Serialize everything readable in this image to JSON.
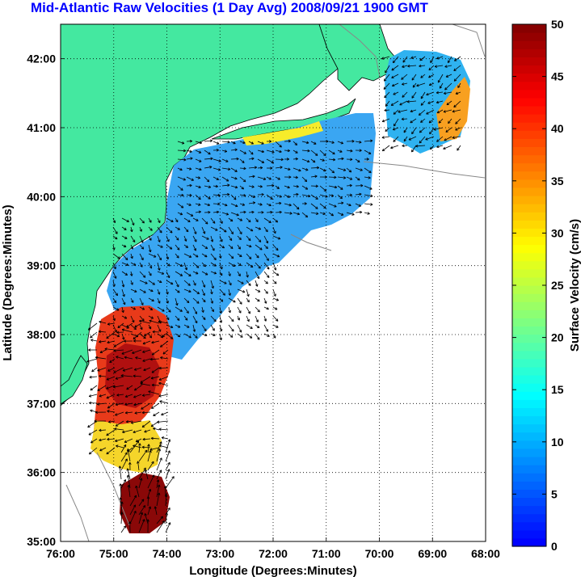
{
  "title": "Mid-Atlantic Raw Velocities (1 Day Avg) 2008/09/21 1900 GMT",
  "map": {
    "xlabel": "Longitude (Degrees:Minutes)",
    "ylabel": "Latitude (Degrees:Minutes)",
    "x_ticks": [
      "76:00",
      "75:00",
      "74:00",
      "73:00",
      "72:00",
      "71:00",
      "70:00",
      "69:00",
      "68:00"
    ],
    "y_ticks": [
      "42:00",
      "41:00",
      "40:00",
      "39:00",
      "38:00",
      "37:00",
      "36:00",
      "35:00"
    ],
    "x_range": [
      -76,
      -68
    ],
    "y_range": [
      35,
      42.5
    ],
    "land_color": "#44e8a0",
    "grid": "dotted"
  },
  "colorbar": {
    "label": "Surface Velocity (cm/s)",
    "ticks": [
      "0",
      "5",
      "10",
      "15",
      "20",
      "25",
      "30",
      "35",
      "40",
      "45",
      "50"
    ],
    "range": [
      0,
      50
    ],
    "colormap": "jet"
  },
  "chart_data": {
    "type": "heatmap",
    "title": "Mid-Atlantic Raw Velocities (1 Day Avg) 2008/09/21 1900 GMT",
    "xlabel": "Longitude (Degrees:Minutes)",
    "ylabel": "Latitude (Degrees:Minutes)",
    "colorbar_label": "Surface Velocity (cm/s)",
    "xlim": [
      -76,
      -68
    ],
    "ylim": [
      35,
      42.5
    ],
    "clim": [
      0,
      50
    ],
    "regions": [
      {
        "name": "",
        "lon": [
          -74.0,
          -70.2
        ],
        "lat": [
          39.6,
          40.9
        ],
        "speed_cm_s": 8
      },
      {
        "name": "",
        "lon": [
          -70.0,
          -68.7
        ],
        "lat": [
          40.9,
          42.1
        ],
        "speed_cm_s": 10
      },
      {
        "name": "",
        "lon": [
          -69.1,
          -68.6
        ],
        "lat": [
          40.9,
          41.8
        ],
        "speed_cm_s": 38
      },
      {
        "name": "",
        "lon": [
          -75.3,
          -72.5
        ],
        "lat": [
          37.9,
          39.8
        ],
        "speed_cm_s": 10
      },
      {
        "name": "",
        "lon": [
          -75.3,
          -73.8
        ],
        "lat": [
          36.6,
          37.8
        ],
        "speed_cm_s": 40
      },
      {
        "name": "",
        "lon": [
          -75.0,
          -74.2
        ],
        "lat": [
          35.1,
          35.9
        ],
        "speed_cm_s": 50
      }
    ]
  }
}
